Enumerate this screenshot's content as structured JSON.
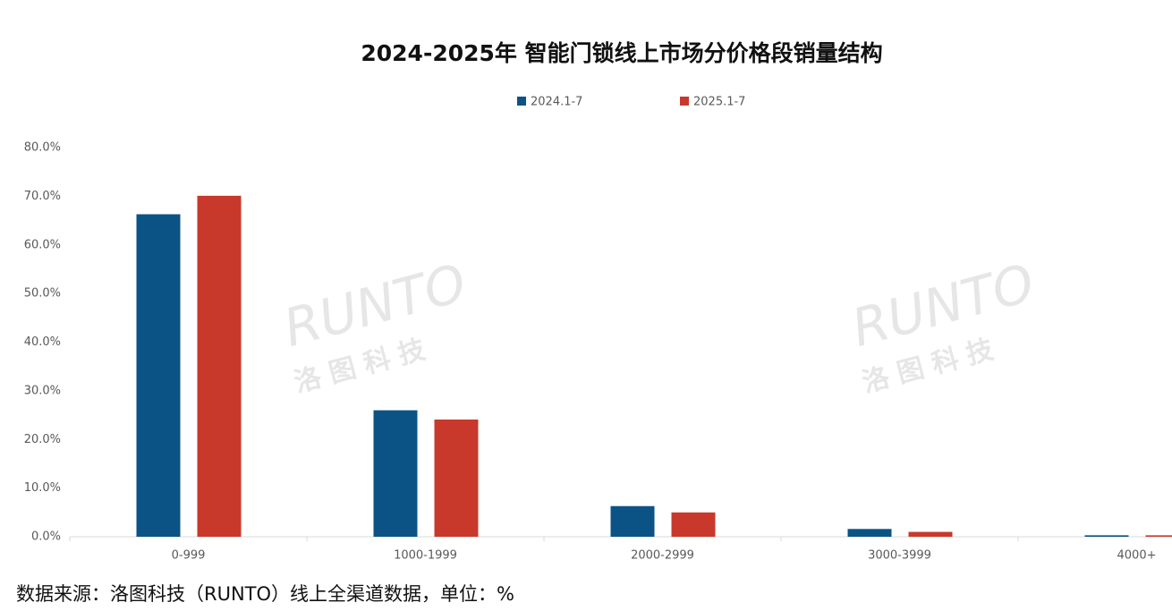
{
  "chart_data": {
    "type": "bar",
    "title": "2024-2025年 智能门锁线上市场分价格段销量结构",
    "categories": [
      "0-999",
      "1000-1999",
      "2000-2999",
      "3000-3999",
      "4000+"
    ],
    "series": [
      {
        "name": "2024.1-7",
        "color": "#0b5384",
        "values": [
          66.3,
          26.0,
          6.3,
          1.6,
          0.3
        ]
      },
      {
        "name": "2025.1-7",
        "color": "#c8392b",
        "values": [
          70.1,
          24.1,
          5.0,
          1.0,
          0.3
        ]
      }
    ],
    "ylim": [
      0,
      80
    ],
    "yticks": [
      {
        "value": 0,
        "label": "0.0%"
      },
      {
        "value": 10,
        "label": "10.0%"
      },
      {
        "value": 20,
        "label": "20.0%"
      },
      {
        "value": 30,
        "label": "30.0%"
      },
      {
        "value": 40,
        "label": "40.0%"
      },
      {
        "value": 50,
        "label": "50.0%"
      },
      {
        "value": 60,
        "label": "60.0%"
      },
      {
        "value": 70,
        "label": "70.0%"
      },
      {
        "value": 80,
        "label": "80.0%"
      }
    ],
    "grid": false,
    "legend": "top",
    "watermark": {
      "text": "RUNTO",
      "subtext": "洛图科技"
    },
    "source": "数据来源：洛图科技（RUNTO）线上全渠道数据，单位：%"
  }
}
